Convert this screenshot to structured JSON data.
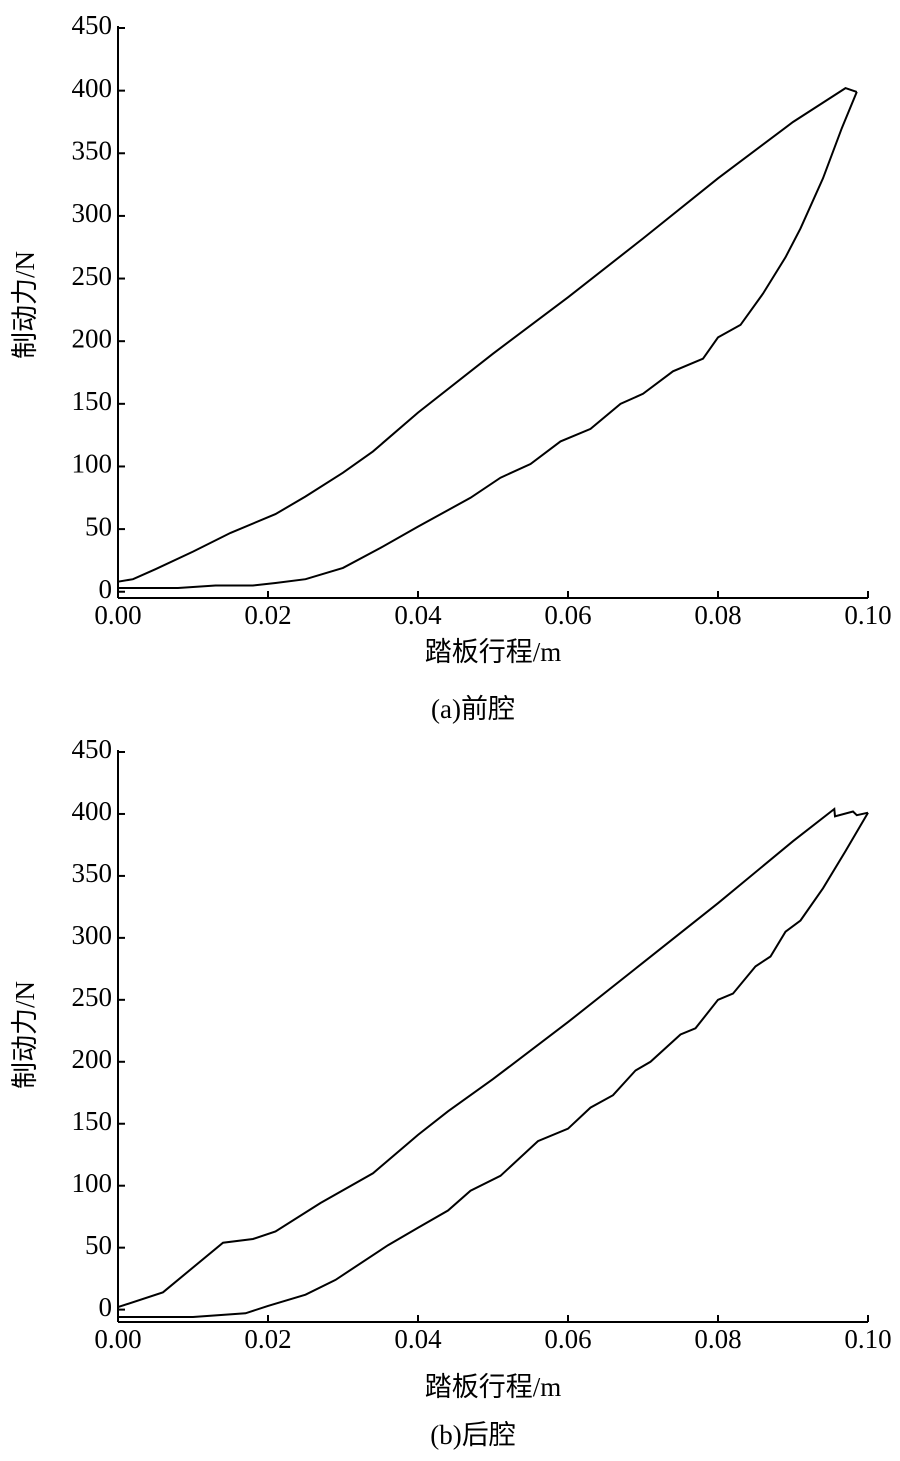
{
  "chart_data": [
    {
      "type": "line",
      "title": "(a)前腔",
      "x_label": "踏板行程/m",
      "y_label": "制动力/N",
      "xlim": [
        0,
        0.1
      ],
      "ylim": [
        -5,
        450
      ],
      "xticks": [
        {
          "value": 0,
          "label": "0.00"
        },
        {
          "value": 0.02,
          "label": "0.02"
        },
        {
          "value": 0.04,
          "label": "0.04"
        },
        {
          "value": 0.06,
          "label": "0.06"
        },
        {
          "value": 0.08,
          "label": "0.08"
        },
        {
          "value": 0.1,
          "label": "0.10"
        }
      ],
      "yticks": [
        0,
        50,
        100,
        150,
        200,
        250,
        300,
        350,
        400,
        450
      ],
      "series": [
        {
          "color": "#000000",
          "x": [
            0,
            0.002,
            0.005,
            0.01,
            0.015,
            0.021,
            0.025,
            0.03,
            0.034,
            0.04,
            0.05,
            0.06,
            0.07,
            0.08,
            0.09,
            0.097,
            0.0985
          ],
          "values": [
            8,
            10,
            18,
            32,
            47,
            62,
            76,
            95,
            112,
            143,
            190,
            235,
            282,
            330,
            375,
            402,
            399
          ]
        },
        {
          "color": "#000000",
          "x": [
            0,
            0.008,
            0.013,
            0.018,
            0.021,
            0.025,
            0.03,
            0.035,
            0.04,
            0.047,
            0.051,
            0.055,
            0.059,
            0.063,
            0.067,
            0.07,
            0.074,
            0.078,
            0.08,
            0.083,
            0.086,
            0.089,
            0.091,
            0.094,
            0.0965,
            0.0985
          ],
          "values": [
            3,
            3,
            5,
            5,
            7,
            10,
            19,
            35,
            52,
            75,
            91,
            102,
            120,
            130,
            150,
            158,
            176,
            186,
            203,
            213,
            238,
            267,
            290,
            330,
            370,
            399
          ]
        }
      ]
    },
    {
      "type": "line",
      "title": "(b)后腔",
      "x_label": "踏板行程/m",
      "y_label": "制动力/N",
      "xlim": [
        0,
        0.1
      ],
      "ylim": [
        -10,
        450
      ],
      "xticks": [
        {
          "value": 0,
          "label": "0.00"
        },
        {
          "value": 0.02,
          "label": "0.02"
        },
        {
          "value": 0.04,
          "label": "0.04"
        },
        {
          "value": 0.06,
          "label": "0.06"
        },
        {
          "value": 0.08,
          "label": "0.08"
        },
        {
          "value": 0.1,
          "label": "0.10"
        }
      ],
      "yticks": [
        0,
        50,
        100,
        150,
        200,
        250,
        300,
        350,
        400,
        450
      ],
      "series": [
        {
          "color": "#000000",
          "x": [
            0,
            0.006,
            0.014,
            0.018,
            0.021,
            0.027,
            0.034,
            0.04,
            0.044,
            0.05,
            0.06,
            0.07,
            0.08,
            0.09,
            0.0955,
            0.0956,
            0.098,
            0.0985,
            0.1
          ],
          "values": [
            2,
            14,
            54,
            57,
            63,
            86,
            110,
            141,
            160,
            186,
            232,
            280,
            328,
            378,
            404,
            398,
            402,
            399,
            401
          ]
        },
        {
          "color": "#000000",
          "x": [
            0,
            0.01,
            0.017,
            0.02,
            0.025,
            0.029,
            0.036,
            0.04,
            0.044,
            0.047,
            0.051,
            0.056,
            0.06,
            0.063,
            0.066,
            0.069,
            0.071,
            0.075,
            0.077,
            0.08,
            0.082,
            0.085,
            0.087,
            0.089,
            0.091,
            0.094,
            0.097,
            0.1
          ],
          "values": [
            -6,
            -6,
            -3,
            3,
            12,
            24,
            52,
            66,
            80,
            96,
            108,
            136,
            146,
            163,
            173,
            193,
            200,
            222,
            227,
            250,
            255,
            277,
            285,
            305,
            314,
            340,
            370,
            401
          ]
        }
      ]
    }
  ]
}
